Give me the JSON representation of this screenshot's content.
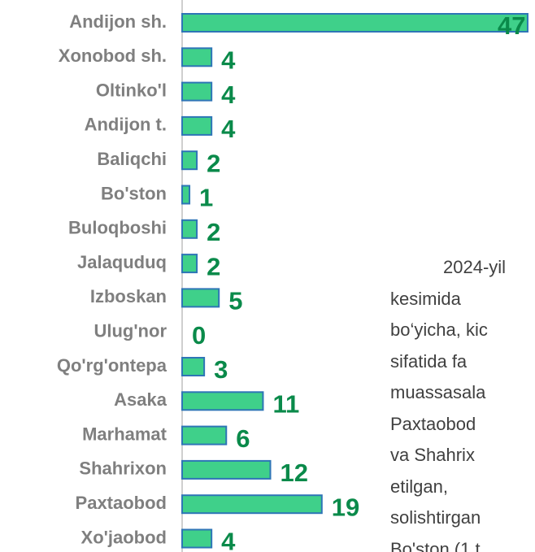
{
  "chart_data": {
    "type": "bar",
    "orientation": "horizontal",
    "categories": [
      "Andijon sh.",
      "Xonobod sh.",
      "Oltinko'l",
      "Andijon t.",
      "Baliqchi",
      "Bo'ston",
      "Buloqboshi",
      "Jalaquduq",
      "Izboskan",
      "Ulug'nor",
      "Qo'rg'ontepa",
      "Asaka",
      "Marhamat",
      "Shahrixon",
      "Paxtaobod",
      "Xo'jaobod"
    ],
    "values": [
      47,
      4,
      4,
      4,
      2,
      1,
      2,
      2,
      5,
      0,
      3,
      11,
      6,
      12,
      19,
      4
    ],
    "color": "#3fd08a",
    "border_color": "#2e75b6",
    "label_color": "#0a8a4a",
    "xlim": [
      0,
      48
    ]
  },
  "side_text": [
    "2024-yil",
    "kesimida",
    "bo‘yicha, kic",
    "sifatida fa",
    "muassasala",
    "Paxtaobod",
    "va Shahrix",
    "etilgan,",
    "solishtirgan",
    "Bo'ston (1 t"
  ]
}
